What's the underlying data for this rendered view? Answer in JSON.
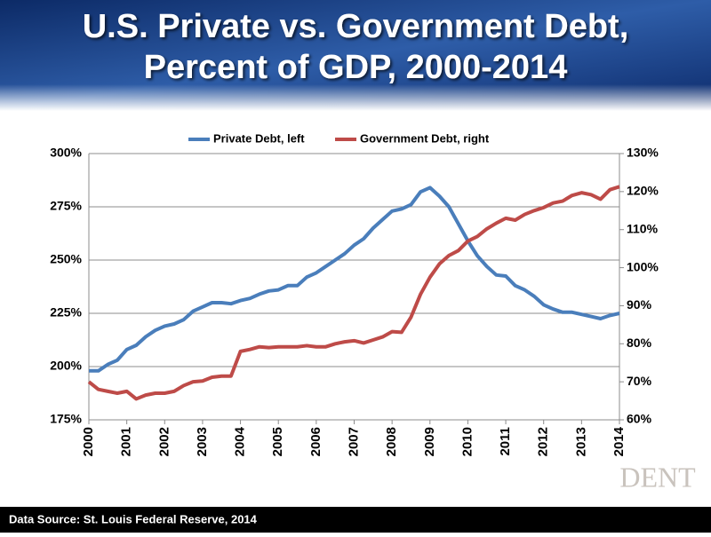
{
  "chart_data": {
    "type": "line",
    "title": "U.S. Private vs. Government Debt,",
    "subtitle": "Percent of GDP, 2000-2014",
    "source": "Data Source: St. Louis Federal Reserve, 2014",
    "logo": "DENT",
    "x": [
      2000,
      2000.25,
      2000.5,
      2000.75,
      2001,
      2001.25,
      2001.5,
      2001.75,
      2002,
      2002.25,
      2002.5,
      2002.75,
      2003,
      2003.25,
      2003.5,
      2003.75,
      2004,
      2004.25,
      2004.5,
      2004.75,
      2005,
      2005.25,
      2005.5,
      2005.75,
      2006,
      2006.25,
      2006.5,
      2006.75,
      2007,
      2007.25,
      2007.5,
      2007.75,
      2008,
      2008.25,
      2008.5,
      2008.75,
      2009,
      2009.25,
      2009.5,
      2009.75,
      2010,
      2010.25,
      2010.5,
      2010.75,
      2011,
      2011.25,
      2011.5,
      2011.75,
      2012,
      2012.25,
      2012.5,
      2012.75,
      2013,
      2013.25,
      2013.5,
      2013.75,
      2014
    ],
    "series": [
      {
        "name": "Private Debt, left",
        "color": "#4a7ebb",
        "axis": "y",
        "values": [
          198,
          198,
          201,
          203,
          208,
          210,
          214,
          217,
          219,
          220,
          222,
          226,
          228,
          230,
          230,
          229.5,
          231,
          232,
          234,
          235.5,
          236,
          238,
          238,
          242,
          244,
          247,
          250,
          253,
          257,
          260,
          265,
          269,
          273,
          274,
          276,
          282,
          284,
          280,
          275,
          267,
          259,
          252,
          247,
          243,
          242.5,
          238,
          236,
          233,
          229,
          227,
          225.5,
          225.5,
          224.5,
          223.5,
          222.5,
          224,
          225
        ]
      },
      {
        "name": "Government Debt, right",
        "color": "#be4b48",
        "axis": "y2",
        "values": [
          70,
          68,
          67.5,
          67,
          67.5,
          65.5,
          66.5,
          67,
          67,
          67.5,
          69,
          70,
          70.2,
          71.2,
          71.5,
          71.5,
          78,
          78.5,
          79.2,
          79,
          79.2,
          79.2,
          79.2,
          79.5,
          79.2,
          79.2,
          80,
          80.5,
          80.8,
          80.2,
          81,
          81.8,
          83.2,
          83,
          87,
          93,
          97.5,
          101,
          103.2,
          104.5,
          107,
          108.2,
          110.2,
          111.7,
          113,
          112.5,
          114,
          115,
          115.8,
          117,
          117.5,
          119,
          119.7,
          119.2,
          118,
          120.5,
          121.3
        ]
      }
    ],
    "xlim": [
      2000,
      2014
    ],
    "xticks": [
      2000,
      2001,
      2002,
      2003,
      2004,
      2005,
      2006,
      2007,
      2008,
      2009,
      2010,
      2011,
      2012,
      2013,
      2014
    ],
    "ylim": [
      175,
      300
    ],
    "yticks": [
      {
        "value": 175,
        "label": "175%"
      },
      {
        "value": 200,
        "label": "200%"
      },
      {
        "value": 225,
        "label": "225%"
      },
      {
        "value": 250,
        "label": "250%"
      },
      {
        "value": 275,
        "label": "275%"
      },
      {
        "value": 300,
        "label": "300%"
      }
    ],
    "y2lim": [
      60,
      130
    ],
    "y2ticks": [
      {
        "value": 60,
        "label": "60%"
      },
      {
        "value": 70,
        "label": "70%"
      },
      {
        "value": 80,
        "label": "80%"
      },
      {
        "value": 90,
        "label": "90%"
      },
      {
        "value": 100,
        "label": "100%"
      },
      {
        "value": 110,
        "label": "110%"
      },
      {
        "value": 120,
        "label": "120%"
      },
      {
        "value": 130,
        "label": "130%"
      }
    ],
    "grid": true,
    "legend": "top"
  }
}
